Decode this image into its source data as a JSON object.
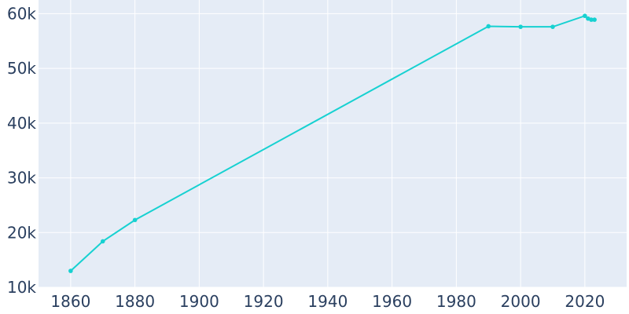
{
  "chart_data": {
    "type": "line",
    "title": "",
    "xlabel": "",
    "ylabel": "",
    "xlim": [
      1850,
      2033
    ],
    "ylim": [
      10000,
      62500
    ],
    "grid": true,
    "legend": "none",
    "x_ticks": [
      1860,
      1880,
      1900,
      1920,
      1940,
      1960,
      1980,
      2000,
      2020
    ],
    "x_tick_labels": [
      "1860",
      "1880",
      "1900",
      "1920",
      "1940",
      "1960",
      "1980",
      "2000",
      "2020"
    ],
    "y_ticks": [
      10000,
      20000,
      30000,
      40000,
      50000,
      60000
    ],
    "y_tick_labels": [
      "10k",
      "20k",
      "30k",
      "40k",
      "50k",
      "60k"
    ],
    "series": [
      {
        "color": "#17d1d1",
        "x": [
          1860,
          1870,
          1880,
          1990,
          2000,
          2010,
          2020,
          2021,
          2022,
          2023
        ],
        "values": [
          13000,
          18400,
          22300,
          57700,
          57600,
          57600,
          59600,
          59100,
          58900,
          58900
        ]
      }
    ]
  }
}
